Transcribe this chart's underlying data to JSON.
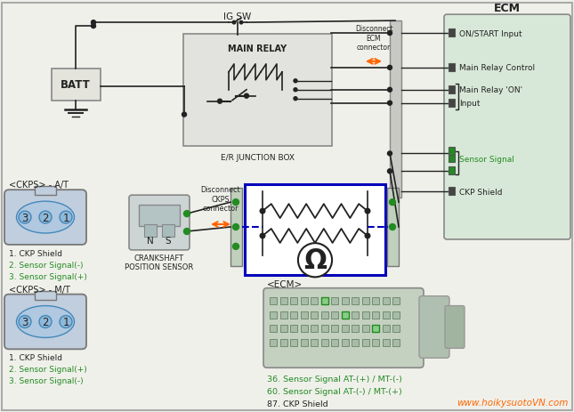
{
  "bg_color": "#f0f0eb",
  "title_ecm": "ECM",
  "ckps_at_label": "<CKPS> - A/T",
  "ckps_mt_label": "<CKPS> - M/T",
  "ckps_at_pins": [
    "1. CKP Shield",
    "2. Sensor Signal(-)",
    "3. Sensor Signal(+)"
  ],
  "ckps_mt_pins": [
    "1. CKP Shield",
    "2. Sensor Signal(+)",
    "3. Sensor Signal(-)"
  ],
  "crankshaft_label": "CRANKSHAFT\nPOSITION SENSOR",
  "ecm_bottom_label": "<ECM>",
  "bottom_labels": [
    "36. Sensor Signal AT-(+) / MT-(-)",
    "60. Sensor Signal AT-(-) / MT-(+)",
    "87. CKP Shield"
  ],
  "junction_box_label": "E/R JUNCTION BOX",
  "main_relay_label": "MAIN RELAY",
  "ig_sw_label": "IG SW",
  "batt_label": "BATT",
  "disconnect_ecm_label": "Disconnect\nECM\nconnector",
  "disconnect_ckps_label": "Disconnect\nCKPS\nconnector",
  "website": "www.hoikysuotoVN.com",
  "line_color": "#222222",
  "green_color": "#228B22",
  "orange_color": "#FF6600",
  "blue_color": "#0000BB",
  "ecm_box_bg": "#d8e8d8",
  "relay_box_bg": "#e2e2de",
  "connector_bg": "#c0cede"
}
